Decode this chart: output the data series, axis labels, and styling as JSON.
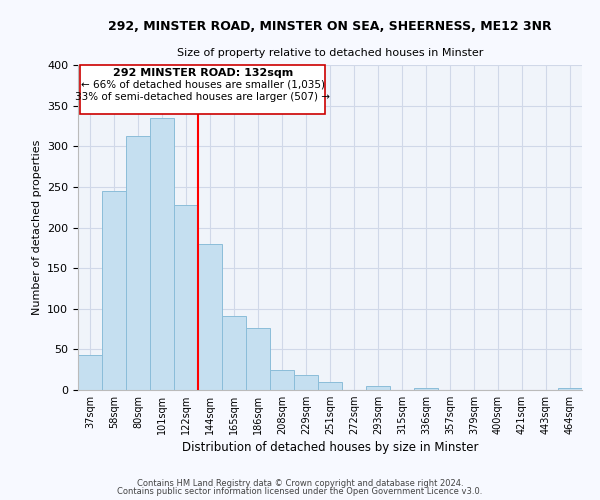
{
  "title": "292, MINSTER ROAD, MINSTER ON SEA, SHEERNESS, ME12 3NR",
  "subtitle": "Size of property relative to detached houses in Minster",
  "xlabel": "Distribution of detached houses by size in Minster",
  "ylabel": "Number of detached properties",
  "bar_labels": [
    "37sqm",
    "58sqm",
    "80sqm",
    "101sqm",
    "122sqm",
    "144sqm",
    "165sqm",
    "186sqm",
    "208sqm",
    "229sqm",
    "251sqm",
    "272sqm",
    "293sqm",
    "315sqm",
    "336sqm",
    "357sqm",
    "379sqm",
    "400sqm",
    "421sqm",
    "443sqm",
    "464sqm"
  ],
  "bar_values": [
    43,
    245,
    313,
    335,
    228,
    180,
    91,
    76,
    25,
    18,
    10,
    0,
    5,
    0,
    2,
    0,
    0,
    0,
    0,
    0,
    3
  ],
  "bar_color": "#c5dff0",
  "bar_edge_color": "#8bbdd9",
  "vline_x": 4.5,
  "vline_color": "red",
  "ylim": [
    0,
    400
  ],
  "yticks": [
    0,
    50,
    100,
    150,
    200,
    250,
    300,
    350,
    400
  ],
  "annotation_title": "292 MINSTER ROAD: 132sqm",
  "annotation_line1": "← 66% of detached houses are smaller (1,035)",
  "annotation_line2": "33% of semi-detached houses are larger (507) →",
  "footer1": "Contains HM Land Registry data © Crown copyright and database right 2024.",
  "footer2": "Contains public sector information licensed under the Open Government Licence v3.0.",
  "bg_color": "#f7f9ff",
  "plot_bg_color": "#f0f4fa",
  "grid_color": "#d0d8e8"
}
